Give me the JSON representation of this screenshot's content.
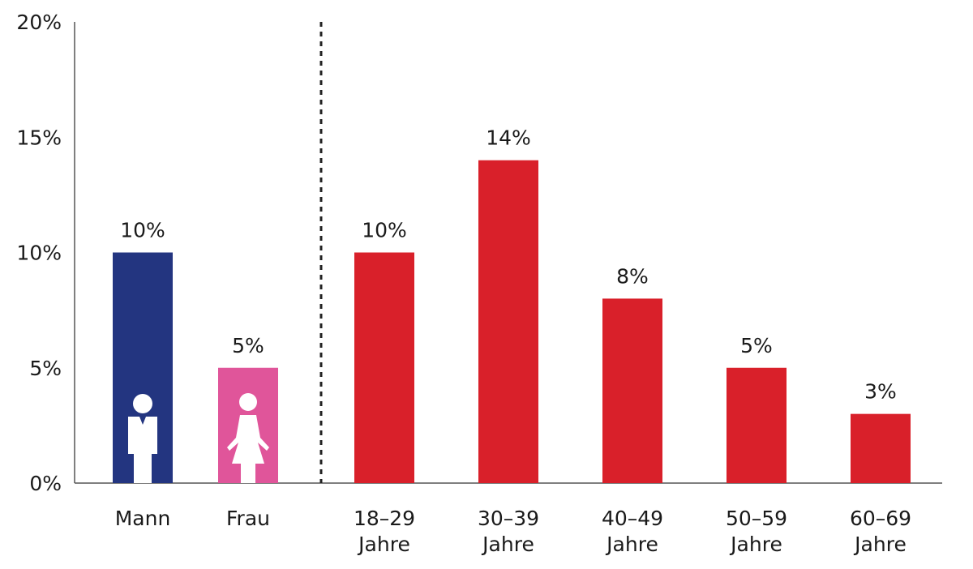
{
  "chart_data": {
    "type": "bar",
    "title": "",
    "xlabel": "",
    "ylabel": "",
    "ylim": [
      0,
      20
    ],
    "yticks": [
      {
        "value": 0,
        "label": "0%"
      },
      {
        "value": 5,
        "label": "5%"
      },
      {
        "value": 10,
        "label": "10%"
      },
      {
        "value": 15,
        "label": "15%"
      },
      {
        "value": 20,
        "label": "20%"
      }
    ],
    "grid": false,
    "legend": "none",
    "divider_after_index": 1,
    "categories": [
      {
        "id": "mann",
        "lines": [
          "Mann"
        ],
        "value": 10,
        "data_label": "10%",
        "color": "#233580",
        "icon": "man-icon"
      },
      {
        "id": "frau",
        "lines": [
          "Frau"
        ],
        "value": 5,
        "data_label": "5%",
        "color": "#e0559a",
        "icon": "woman-icon"
      },
      {
        "id": "age-18-29",
        "lines": [
          "18–29",
          "Jahre"
        ],
        "value": 10,
        "data_label": "10%",
        "color": "#d9202a"
      },
      {
        "id": "age-30-39",
        "lines": [
          "30–39",
          "Jahre"
        ],
        "value": 14,
        "data_label": "14%",
        "color": "#d9202a"
      },
      {
        "id": "age-40-49",
        "lines": [
          "40–49",
          "Jahre"
        ],
        "value": 8,
        "data_label": "8%",
        "color": "#d9202a"
      },
      {
        "id": "age-50-59",
        "lines": [
          "50–59",
          "Jahre"
        ],
        "value": 5,
        "data_label": "5%",
        "color": "#d9202a"
      },
      {
        "id": "age-60-69",
        "lines": [
          "60–69",
          "Jahre"
        ],
        "value": 3,
        "data_label": "3%",
        "color": "#d9202a"
      }
    ]
  }
}
